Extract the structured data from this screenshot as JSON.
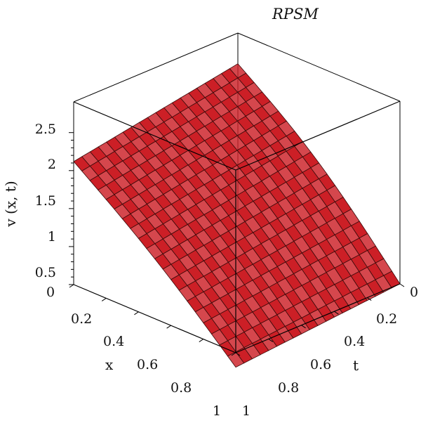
{
  "chart_data": {
    "type": "surface3d",
    "title": "RPSM",
    "zlabel": "v (x, t)",
    "xlabel": "x",
    "tlabel": "t",
    "x_range": [
      0,
      1
    ],
    "t_range": [
      0,
      1
    ],
    "z_range": [
      0.5,
      2.5
    ],
    "x_ticks": [
      "0",
      "0.2",
      "0.4",
      "0.6",
      "0.8",
      "1"
    ],
    "t_ticks": [
      "0",
      "0.2",
      "0.4",
      "0.6",
      "0.8",
      "1"
    ],
    "z_ticks": [
      "0.5",
      "1",
      "1.5",
      "2",
      "2.5"
    ],
    "surface_corners": [
      {
        "x": 0,
        "t": 0,
        "v": 2.6
      },
      {
        "x": 0,
        "t": 1,
        "v": 2.2
      },
      {
        "x": 1,
        "t": 0,
        "v": 0.5
      },
      {
        "x": 1,
        "t": 1,
        "v": 0.3
      }
    ],
    "surface_color": "#cc1f26",
    "mesh_color": "#3a0a0a",
    "grid_resolution": 20
  }
}
